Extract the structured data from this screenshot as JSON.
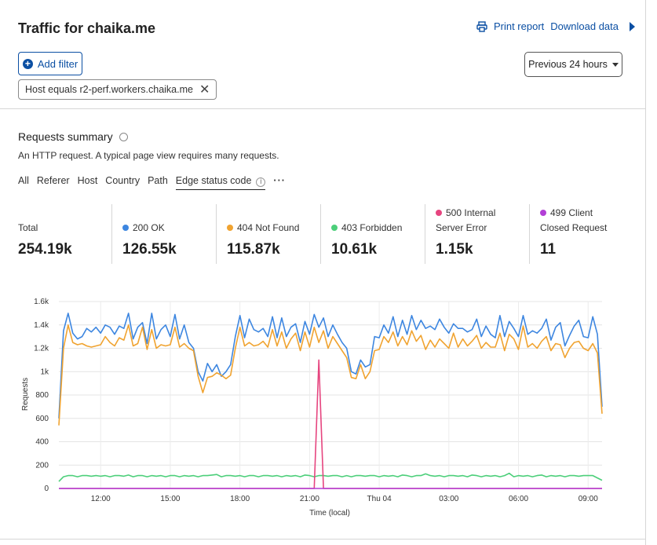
{
  "header": {
    "title": "Traffic for chaika.me",
    "print_label": "Print report",
    "download_label": "Download data"
  },
  "filters": {
    "add_label": "Add filter",
    "chip_label": "Host equals r2-perf.workers.chaika.me",
    "range_label": "Previous 24 hours"
  },
  "summary": {
    "title": "Requests summary",
    "description": "An HTTP request. A typical page view requires many requests.",
    "tabs": [
      "All",
      "Referer",
      "Host",
      "Country",
      "Path",
      "Edge status code"
    ],
    "active_tab": "Edge status code"
  },
  "stats": [
    {
      "label": "Total",
      "value": "254.19k"
    },
    {
      "label": "200 OK",
      "value": "126.55k",
      "color": "#3d86e0"
    },
    {
      "label": "404 Not Found",
      "value": "115.87k",
      "color": "#f0a330"
    },
    {
      "label": "403 Forbidden",
      "value": "10.61k",
      "color": "#4ccf7a"
    },
    {
      "label": "500 Internal Server Error",
      "label_line1": "500 Internal",
      "label_line2": "Server Error",
      "value": "1.15k",
      "color": "#e6457f"
    },
    {
      "label": "499 Client Closed Request",
      "label_line1": "499 Client",
      "label_line2": "Closed Request",
      "value": "11",
      "color": "#b23fd6"
    }
  ],
  "chart_data": {
    "type": "line",
    "xlabel": "Time (local)",
    "ylabel": "Requests",
    "y_ticks": [
      "0",
      "200",
      "400",
      "600",
      "800",
      "1k",
      "1.2k",
      "1.4k",
      "1.6k"
    ],
    "x_ticks": [
      "12:00",
      "15:00",
      "18:00",
      "21:00",
      "Thu 04",
      "03:00",
      "06:00",
      "09:00"
    ],
    "ylim": [
      0,
      1600
    ],
    "grid": true,
    "series": [
      {
        "name": "200 OK",
        "color": "#3d86e0",
        "values": [
          600,
          1350,
          1500,
          1330,
          1280,
          1300,
          1370,
          1340,
          1380,
          1330,
          1400,
          1380,
          1320,
          1390,
          1370,
          1500,
          1280,
          1380,
          1420,
          1240,
          1500,
          1280,
          1360,
          1400,
          1300,
          1490,
          1280,
          1400,
          1250,
          1200,
          1000,
          920,
          1070,
          1000,
          1060,
          960,
          1000,
          1060,
          1300,
          1480,
          1290,
          1450,
          1360,
          1340,
          1370,
          1300,
          1470,
          1290,
          1460,
          1300,
          1380,
          1410,
          1250,
          1430,
          1320,
          1490,
          1380,
          1460,
          1300,
          1400,
          1320,
          1250,
          1200,
          1000,
          980,
          1100,
          1040,
          1060,
          1300,
          1290,
          1400,
          1330,
          1470,
          1300,
          1440,
          1320,
          1480,
          1360,
          1440,
          1370,
          1390,
          1360,
          1450,
          1380,
          1330,
          1410,
          1370,
          1370,
          1340,
          1360,
          1450,
          1300,
          1390,
          1320,
          1290,
          1480,
          1300,
          1430,
          1370,
          1300,
          1480,
          1320,
          1350,
          1330,
          1370,
          1450,
          1270,
          1380,
          1420,
          1220,
          1310,
          1390,
          1440,
          1300,
          1290,
          1470,
          1320,
          700
        ]
      },
      {
        "name": "404 Not Found",
        "color": "#f0a330",
        "values": [
          540,
          1200,
          1400,
          1250,
          1230,
          1240,
          1220,
          1210,
          1220,
          1230,
          1300,
          1250,
          1220,
          1290,
          1270,
          1400,
          1220,
          1240,
          1380,
          1190,
          1360,
          1200,
          1230,
          1220,
          1230,
          1380,
          1210,
          1240,
          1200,
          1180,
          960,
          820,
          950,
          960,
          990,
          970,
          940,
          970,
          1200,
          1380,
          1220,
          1250,
          1220,
          1230,
          1260,
          1210,
          1360,
          1220,
          1340,
          1200,
          1280,
          1330,
          1180,
          1340,
          1210,
          1380,
          1250,
          1350,
          1200,
          1300,
          1240,
          1180,
          1120,
          950,
          940,
          1060,
          940,
          1000,
          1180,
          1190,
          1300,
          1250,
          1340,
          1220,
          1300,
          1230,
          1350,
          1260,
          1310,
          1190,
          1270,
          1210,
          1280,
          1240,
          1200,
          1330,
          1210,
          1280,
          1220,
          1260,
          1310,
          1200,
          1250,
          1210,
          1210,
          1330,
          1180,
          1320,
          1280,
          1190,
          1390,
          1210,
          1240,
          1200,
          1260,
          1300,
          1180,
          1240,
          1230,
          1120,
          1200,
          1250,
          1260,
          1200,
          1180,
          1240,
          1160,
          640
        ]
      },
      {
        "name": "403 Forbidden",
        "color": "#4ccf7a",
        "values": [
          60,
          100,
          110,
          110,
          100,
          110,
          110,
          105,
          110,
          105,
          110,
          100,
          110,
          110,
          105,
          115,
          100,
          110,
          110,
          100,
          110,
          105,
          110,
          100,
          110,
          110,
          100,
          110,
          105,
          110,
          100,
          110,
          110,
          115,
          120,
          100,
          110,
          110,
          105,
          110,
          100,
          110,
          110,
          100,
          110,
          110,
          105,
          110,
          100,
          110,
          105,
          110,
          100,
          115,
          110,
          100,
          110,
          110,
          105,
          110,
          110,
          100,
          110,
          100,
          110,
          110,
          105,
          110,
          110,
          100,
          110,
          105,
          110,
          100,
          115,
          110,
          100,
          110,
          110,
          125,
          110,
          105,
          110,
          100,
          110,
          110,
          105,
          110,
          100,
          115,
          110,
          100,
          110,
          105,
          110,
          100,
          110,
          130,
          100,
          110,
          105,
          110,
          100,
          110,
          115,
          100,
          110,
          105,
          110,
          100,
          110,
          110,
          105,
          110,
          110,
          110,
          90,
          70
        ]
      },
      {
        "name": "500 Internal Server Error",
        "color": "#e6457f",
        "values": [
          0,
          0,
          0,
          0,
          0,
          0,
          0,
          0,
          0,
          0,
          0,
          0,
          0,
          0,
          0,
          0,
          0,
          0,
          0,
          0,
          0,
          0,
          0,
          0,
          0,
          0,
          0,
          0,
          0,
          0,
          0,
          0,
          0,
          0,
          0,
          0,
          0,
          0,
          0,
          0,
          0,
          0,
          0,
          0,
          0,
          0,
          0,
          0,
          0,
          0,
          0,
          0,
          0,
          0,
          0,
          0,
          1100,
          0,
          0,
          0,
          0,
          0,
          0,
          0,
          0,
          0,
          0,
          0,
          0,
          0,
          0,
          0,
          0,
          0,
          0,
          0,
          0,
          0,
          0,
          0,
          0,
          0,
          0,
          0,
          0,
          0,
          0,
          0,
          0,
          0,
          0,
          0,
          0,
          0,
          0,
          0,
          0,
          0,
          0,
          0,
          0,
          0,
          0,
          0,
          0,
          0,
          0,
          0,
          0,
          0,
          0,
          0,
          0,
          0,
          0,
          0,
          0,
          0
        ]
      },
      {
        "name": "499 Client Closed Request",
        "color": "#b23fd6",
        "values": [
          0,
          0,
          0,
          0,
          0,
          0,
          0,
          0,
          0,
          0,
          0,
          0,
          0,
          0,
          0,
          0,
          0,
          0,
          0,
          0,
          0,
          0,
          0,
          0,
          0,
          0,
          0,
          0,
          0,
          0,
          0,
          0,
          0,
          0,
          0,
          0,
          0,
          0,
          0,
          0,
          0,
          0,
          0,
          0,
          0,
          0,
          0,
          0,
          0,
          0,
          0,
          0,
          0,
          0,
          0,
          0,
          0,
          0,
          0,
          0,
          0,
          0,
          0,
          0,
          0,
          0,
          0,
          0,
          0,
          0,
          0,
          0,
          0,
          0,
          0,
          0,
          0,
          0,
          0,
          0,
          0,
          0,
          0,
          0,
          0,
          0,
          0,
          0,
          0,
          0,
          0,
          0,
          0,
          0,
          0,
          0,
          0,
          0,
          0,
          0,
          0,
          0,
          0,
          0,
          0,
          0,
          0,
          0,
          0,
          0,
          0,
          0,
          0,
          0,
          0,
          0,
          0,
          0
        ]
      }
    ]
  }
}
